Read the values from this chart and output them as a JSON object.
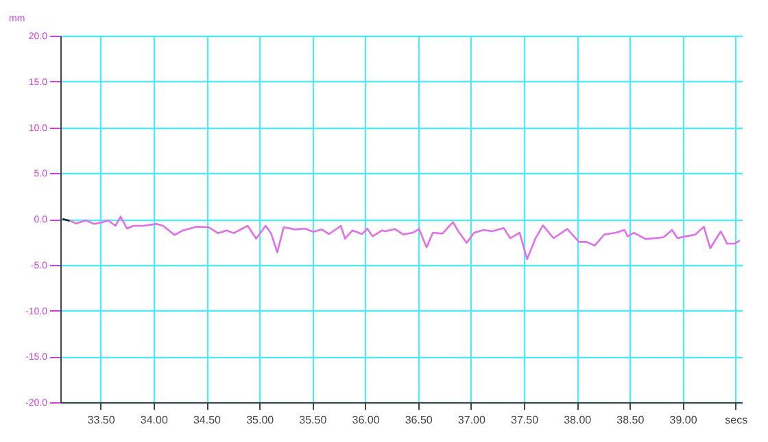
{
  "chart_data": {
    "type": "line",
    "ylabel": "mm",
    "xlim": [
      33.12,
      39.56
    ],
    "ylim": [
      -20,
      20
    ],
    "xticks": [
      {
        "value": 33.5,
        "label": "33.50"
      },
      {
        "value": 34,
        "label": "34.00"
      },
      {
        "value": 34.5,
        "label": "34.50"
      },
      {
        "value": 35,
        "label": "35.00"
      },
      {
        "value": 35.5,
        "label": "35.50"
      },
      {
        "value": 36,
        "label": "36.00"
      },
      {
        "value": 36.5,
        "label": "36.50"
      },
      {
        "value": 37,
        "label": "37.00"
      },
      {
        "value": 37.5,
        "label": "37.50"
      },
      {
        "value": 38,
        "label": "38.00"
      },
      {
        "value": 38.5,
        "label": "38.50"
      },
      {
        "value": 39,
        "label": "39.00"
      },
      {
        "value": 39.5,
        "label": "secs"
      }
    ],
    "yticks": [
      {
        "value": -20,
        "label": "-20.0"
      },
      {
        "value": -15,
        "label": "-15.0"
      },
      {
        "value": -10,
        "label": "-10.0"
      },
      {
        "value": -5,
        "label": "-5.0"
      },
      {
        "value": 0,
        "label": "0.0"
      },
      {
        "value": 5,
        "label": "5.0"
      },
      {
        "value": 10,
        "label": "10.0"
      },
      {
        "value": 15,
        "label": "15.0"
      },
      {
        "value": 20,
        "label": "20.0"
      }
    ],
    "grid": true,
    "series": [
      {
        "color": "#222222",
        "x": [
          33.14,
          33.21
        ],
        "values": [
          0,
          -0.2
        ]
      },
      {
        "color": "#e070e8",
        "x": [
          33.21,
          33.27,
          33.36,
          33.44,
          33.51,
          33.57,
          33.64,
          33.69,
          33.75,
          33.81,
          33.9,
          34.03,
          34.09,
          34.2,
          34.28,
          34.41,
          34.52,
          34.61,
          34.69,
          34.76,
          34.89,
          34.97,
          35.06,
          35.11,
          35.17,
          35.23,
          35.34,
          35.43,
          35.51,
          35.59,
          35.66,
          35.77,
          35.81,
          35.88,
          35.97,
          36.02,
          36.07,
          36.16,
          36.19,
          36.28,
          36.36,
          36.45,
          36.51,
          36.58,
          36.64,
          36.73,
          36.83,
          36.88,
          36.96,
          37.03,
          37.12,
          37.2,
          37.31,
          37.37,
          37.46,
          37.53,
          37.61,
          37.68,
          37.78,
          37.91,
          38.02,
          38.09,
          38.17,
          38.26,
          38.37,
          38.45,
          38.48,
          38.54,
          38.65,
          38.82,
          38.9,
          38.95,
          39.03,
          39.12,
          39.2,
          39.26,
          39.36,
          39.42,
          39.49,
          39.54
        ],
        "values": [
          -0.2,
          -0.5,
          -0.15,
          -0.55,
          -0.4,
          -0.15,
          -0.75,
          0.25,
          -1.05,
          -0.75,
          -0.75,
          -0.55,
          -0.75,
          -1.75,
          -1.25,
          -0.85,
          -0.9,
          -1.55,
          -1.25,
          -1.55,
          -0.75,
          -2.15,
          -0.75,
          -1.55,
          -3.65,
          -0.9,
          -1.15,
          -1.05,
          -1.4,
          -1.15,
          -1.65,
          -0.75,
          -2.15,
          -1.25,
          -1.65,
          -1.05,
          -1.9,
          -1.25,
          -1.35,
          -1.1,
          -1.7,
          -1.5,
          -1.1,
          -3.1,
          -1.5,
          -1.6,
          -0.35,
          -1.35,
          -2.6,
          -1.5,
          -1.2,
          -1.35,
          -1.0,
          -2.1,
          -1.5,
          -4.4,
          -2.1,
          -0.7,
          -2.1,
          -1.1,
          -2.5,
          -2.5,
          -2.9,
          -1.7,
          -1.5,
          -1.2,
          -1.9,
          -1.5,
          -2.2,
          -2.0,
          -1.2,
          -2.1,
          -1.9,
          -1.7,
          -0.85,
          -3.2,
          -1.35,
          -2.7,
          -2.7,
          -2.35
        ]
      }
    ]
  }
}
